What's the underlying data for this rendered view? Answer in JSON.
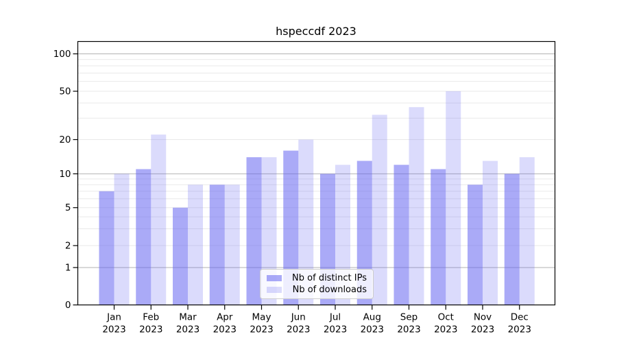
{
  "title": "hspeccdf 2023",
  "chart_data": {
    "type": "bar",
    "categories": [
      "Jan",
      "Feb",
      "Mar",
      "Apr",
      "May",
      "Jun",
      "Jul",
      "Aug",
      "Sep",
      "Oct",
      "Nov",
      "Dec"
    ],
    "year_label": "2023",
    "series": [
      {
        "name": "Nb of distinct IPs",
        "values": [
          7,
          11,
          5,
          8,
          14,
          16,
          10,
          13,
          12,
          11,
          8,
          10
        ],
        "color": "rgba(100,100,240,0.55)"
      },
      {
        "name": "Nb of downloads",
        "values": [
          10,
          22,
          8,
          8,
          14,
          20,
          12,
          32,
          37,
          50,
          13,
          14
        ],
        "color": "rgba(100,100,240,0.23)"
      }
    ],
    "title": "hspeccdf 2023",
    "xlabel": "",
    "ylabel": "",
    "yscale": "symlog",
    "ytick_labels": [
      0,
      1,
      2,
      5,
      10,
      20,
      50,
      100
    ],
    "minor_gridlines": [
      2,
      3,
      4,
      5,
      6,
      7,
      8,
      9,
      20,
      30,
      40,
      50,
      60,
      70,
      80,
      90
    ],
    "major_gridlines": [
      1,
      10,
      100
    ],
    "ylim": [
      0,
      127
    ],
    "grid": true,
    "legend_position": "lower center"
  },
  "colors": {
    "major_grid": "#b2b2b2",
    "minor_grid": "#e9e9e9",
    "frame": "#000000",
    "tick_text": "#000000"
  }
}
